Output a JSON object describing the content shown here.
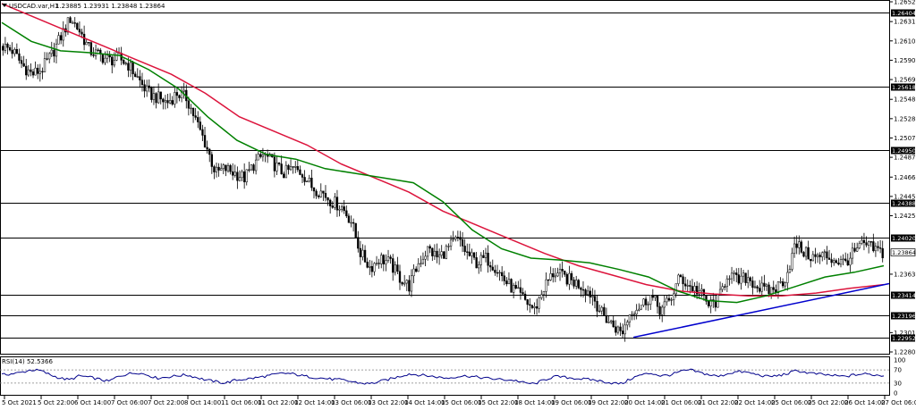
{
  "header": {
    "symbol": "USDCAD.var,H1",
    "ohlc": "1.23885 1.23931 1.23848 1.23864",
    "menu_icon": "triangle-down-icon"
  },
  "colors": {
    "background": "#ffffff",
    "candle_up": "#000000",
    "candle_down": "#000000",
    "ma_fast": "#008000",
    "ma_slow": "#dc143c",
    "trendline": "#0000cd",
    "level_line": "#000000",
    "rsi_line": "#00008b",
    "rsi_levels": "#808080"
  },
  "chart_data": [
    {
      "type": "candlestick",
      "symbol": "USDCAD.var",
      "timeframe": "H1",
      "ylim": [
        1.22805,
        1.2652
      ],
      "y_ticks": [
        1.2652,
        1.2631,
        1.26105,
        1.259,
        1.25695,
        1.25485,
        1.2528,
        1.25075,
        1.2487,
        1.2466,
        1.24455,
        1.2425,
        1.2363,
        1.2301,
        1.22805
      ],
      "x_tick_labels": [
        "5 Oct 2021",
        "5 Oct 22:00",
        "6 Oct 14:00",
        "7 Oct 06:00",
        "7 Oct 22:00",
        "8 Oct 14:00",
        "11 Oct 06:00",
        "11 Oct 22:00",
        "12 Oct 14:00",
        "13 Oct 06:00",
        "13 Oct 22:00",
        "14 Oct 14:00",
        "15 Oct 06:00",
        "15 Oct 22:00",
        "18 Oct 14:00",
        "19 Oct 06:00",
        "19 Oct 22:00",
        "20 Oct 14:00",
        "21 Oct 06:00",
        "21 Oct 22:00",
        "22 Oct 14:00",
        "25 Oct 06:00",
        "25 Oct 22:00",
        "26 Oct 14:00",
        "27 Oct 06:00"
      ],
      "horizontal_levels": [
        1.26404,
        1.25618,
        1.2495,
        1.24388,
        1.2402,
        1.23414,
        1.23196,
        1.22952
      ],
      "current_price": 1.23864,
      "last_ohlc": {
        "open": 1.23885,
        "high": 1.23931,
        "low": 1.23848,
        "close": 1.23864
      },
      "trendline": {
        "from": {
          "x": "20 Oct 18:00",
          "y": 1.2296
        },
        "to": {
          "x": "27 Oct 06:00",
          "y": 1.2353
        }
      },
      "series": [
        {
          "kind": "candles",
          "close_path": [
            1.2605,
            1.26,
            1.2585,
            1.2575,
            1.258,
            1.2595,
            1.2615,
            1.2635,
            1.262,
            1.26,
            1.2595,
            1.259,
            1.2592,
            1.2585,
            1.257,
            1.2555,
            1.255,
            1.2545,
            1.2555,
            1.255,
            1.2525,
            1.25,
            1.247,
            1.2475,
            1.247,
            1.2465,
            1.248,
            1.249,
            1.248,
            1.247,
            1.2475,
            1.247,
            1.2455,
            1.245,
            1.244,
            1.2435,
            1.242,
            1.2385,
            1.237,
            1.238,
            1.2375,
            1.236,
            1.235,
            1.2375,
            1.239,
            1.238,
            1.239,
            1.24,
            1.2385,
            1.2375,
            1.238,
            1.237,
            1.2355,
            1.2345,
            1.2335,
            1.2325,
            1.235,
            1.2365,
            1.236,
            1.2355,
            1.235,
            1.234,
            1.232,
            1.231,
            1.23,
            1.2325,
            1.233,
            1.234,
            1.2325,
            1.2335,
            1.236,
            1.235,
            1.2345,
            1.233,
            1.2335,
            1.2365,
            1.2355,
            1.236,
            1.235,
            1.2345,
            1.2348,
            1.236,
            1.2395,
            1.2385,
            1.238,
            1.2383,
            1.2378,
            1.2375,
            1.2385,
            1.2395,
            1.239,
            1.2386
          ]
        },
        {
          "kind": "moving_average",
          "path": [
            1.263,
            1.261,
            1.26,
            1.2598,
            1.2595,
            1.258,
            1.256,
            1.253,
            1.2505,
            1.249,
            1.2485,
            1.2475,
            1.247,
            1.2465,
            1.246,
            1.244,
            1.241,
            1.239,
            1.238,
            1.2378,
            1.2375,
            1.2368,
            1.236,
            1.2345,
            1.2335,
            1.2333,
            1.234,
            1.235,
            1.236,
            1.2365,
            1.2372
          ]
        },
        {
          "kind": "moving_average",
          "path": [
            1.265,
            1.2635,
            1.262,
            1.2605,
            1.259,
            1.2575,
            1.2555,
            1.253,
            1.2515,
            1.25,
            1.248,
            1.2465,
            1.245,
            1.243,
            1.2415,
            1.24,
            1.2385,
            1.2372,
            1.2362,
            1.2352,
            1.2345,
            1.2342,
            1.234,
            1.234,
            1.2343,
            1.2348,
            1.2352
          ]
        }
      ]
    },
    {
      "type": "line",
      "name": "RSI(14) 52.5366",
      "indicator": "RSI",
      "period": 14,
      "current_value": 52.5366,
      "ylim": [
        0,
        100
      ],
      "y_ticks": [
        100,
        70,
        30,
        0
      ],
      "reference_levels": [
        70,
        30
      ],
      "values": [
        55,
        58,
        62,
        70,
        68,
        55,
        45,
        40,
        52,
        48,
        42,
        35,
        50,
        58,
        62,
        55,
        45,
        48,
        52,
        55,
        48,
        40,
        35,
        30,
        38,
        42,
        45,
        50,
        55,
        60,
        58,
        52,
        48,
        45,
        42,
        40,
        35,
        30,
        28,
        35,
        42,
        50,
        58,
        55,
        52,
        48,
        45,
        50,
        52,
        48,
        45,
        42,
        40,
        38,
        30,
        28,
        40,
        50,
        48,
        45,
        42,
        40,
        35,
        30,
        28,
        45,
        55,
        60,
        52,
        55,
        65,
        70,
        62,
        55,
        50,
        60,
        65,
        62,
        55,
        50,
        52,
        58,
        68,
        62,
        58,
        55,
        52,
        50,
        55,
        58,
        55,
        52.5
      ]
    }
  ]
}
